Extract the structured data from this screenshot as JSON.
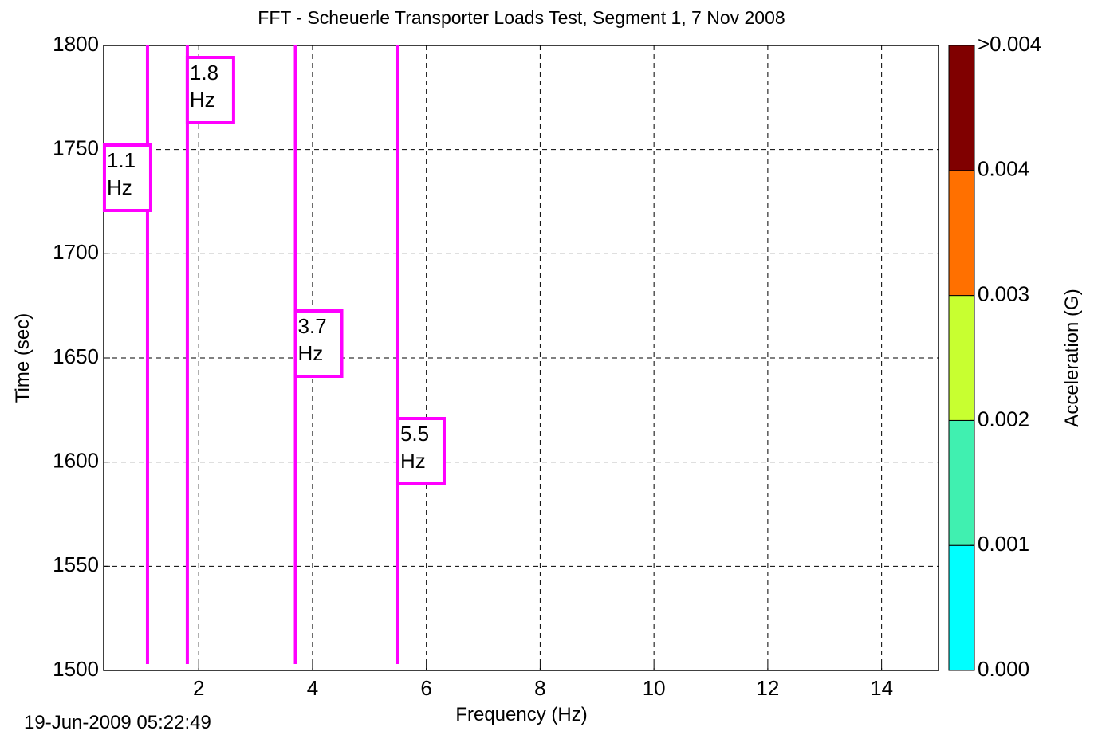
{
  "chart_data": {
    "type": "contour",
    "title": "FFT - Scheuerle Transporter Loads Test,  Segment 1,  7 Nov 2008",
    "x_label": "Frequency (Hz)",
    "y_label": "Time (sec)",
    "xlim": [
      0.33,
      15
    ],
    "ylim": [
      1500,
      1800
    ],
    "xticks": [
      2,
      4,
      6,
      8,
      10,
      12,
      14
    ],
    "yticks": [
      1500,
      1550,
      1600,
      1650,
      1700,
      1750,
      1800
    ],
    "grid": true,
    "annotations": [
      {
        "x": 1.1,
        "text": [
          "1.1",
          "Hz"
        ],
        "color": "#ff00ff"
      },
      {
        "x": 1.8,
        "text": [
          "1.8",
          "Hz"
        ],
        "color": "#ff00ff"
      },
      {
        "x": 3.7,
        "text": [
          "3.7",
          "Hz"
        ],
        "color": "#ff00ff"
      },
      {
        "x": 5.5,
        "text": [
          "5.5",
          "Hz"
        ],
        "color": "#ff00ff"
      }
    ],
    "colorbar": {
      "label": "Acceleration (G)",
      "tick_labels": [
        "0.000",
        "0.001",
        "0.002",
        "0.003",
        "0.004",
        ">0.004"
      ],
      "colors": [
        "#00ffff",
        "#40f0b0",
        "#c8ff30",
        "#ff7000",
        "#800000"
      ]
    },
    "timestamp": "19-Jun-2009 05:22:49"
  }
}
